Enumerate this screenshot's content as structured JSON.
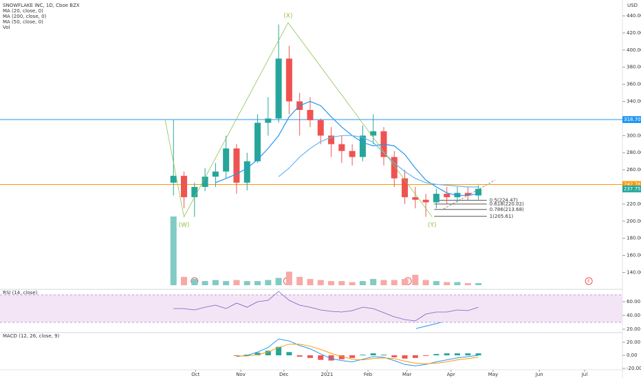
{
  "chart_data": [
    {
      "type": "candlestick",
      "title": "SNOWFLAKE INC, 1D, Cboe BZX",
      "currency": "USD",
      "xlim": [
        -16.5,
        42.7
      ],
      "xticks": [
        {
          "value": 2.1,
          "label": "Oct"
        },
        {
          "value": 6.4,
          "label": "Nov"
        },
        {
          "value": 10.5,
          "label": "Dec"
        },
        {
          "value": 14.6,
          "label": "2021"
        },
        {
          "value": 18.5,
          "label": "Feb"
        },
        {
          "value": 22.2,
          "label": "Mar"
        },
        {
          "value": 26.4,
          "label": "Apr"
        },
        {
          "value": 30.4,
          "label": "May"
        },
        {
          "value": 34.8,
          "label": "Jun"
        },
        {
          "value": 39.1,
          "label": "Jul"
        }
      ],
      "ylim": [
        121.1,
        458.5
      ],
      "yticks": [
        {
          "value": 140,
          "label": "140.00"
        },
        {
          "value": 160,
          "label": "160.00"
        },
        {
          "value": 180,
          "label": "180.00"
        },
        {
          "value": 200,
          "label": "200.00"
        },
        {
          "value": 220,
          "label": "220.00"
        },
        {
          "value": 240,
          "label": "240.00"
        },
        {
          "value": 260,
          "label": "260.00"
        },
        {
          "value": 280,
          "label": "280.00"
        },
        {
          "value": 300,
          "label": "300.00"
        },
        {
          "value": 320,
          "label": "320.00"
        },
        {
          "value": 340,
          "label": "340.00"
        },
        {
          "value": 360,
          "label": "360.00"
        },
        {
          "value": 380,
          "label": "380.00"
        },
        {
          "value": 400,
          "label": "400.00"
        },
        {
          "value": 420,
          "label": "420.00"
        },
        {
          "value": 440,
          "label": "440.00"
        }
      ],
      "ohlc": [
        [
          245,
          319,
          230,
          253
        ],
        [
          253,
          258,
          215,
          228
        ],
        [
          228,
          245,
          205,
          240
        ],
        [
          240,
          262,
          235,
          252
        ],
        [
          252,
          268,
          240,
          258
        ],
        [
          258,
          300,
          250,
          285
        ],
        [
          285,
          290,
          232,
          245
        ],
        [
          245,
          280,
          236,
          270
        ],
        [
          270,
          325,
          268,
          315
        ],
        [
          315,
          345,
          300,
          320
        ],
        [
          320,
          430,
          315,
          390
        ],
        [
          390,
          405,
          325,
          340
        ],
        [
          340,
          350,
          300,
          330
        ],
        [
          330,
          345,
          310,
          318
        ],
        [
          318,
          320,
          290,
          300
        ],
        [
          300,
          310,
          275,
          290
        ],
        [
          290,
          300,
          268,
          282
        ],
        [
          282,
          290,
          265,
          275
        ],
        [
          275,
          312,
          270,
          300
        ],
        [
          300,
          325,
          290,
          305
        ],
        [
          305,
          310,
          265,
          275
        ],
        [
          275,
          282,
          240,
          250
        ],
        [
          250,
          260,
          220,
          228
        ],
        [
          228,
          240,
          215,
          225
        ],
        [
          225,
          232,
          205,
          222
        ],
        [
          222,
          238,
          215,
          232
        ],
        [
          232,
          240,
          220,
          228
        ],
        [
          228,
          240,
          222,
          233
        ],
        [
          233,
          240,
          224,
          230
        ],
        [
          230,
          242,
          225,
          237.75
        ]
      ],
      "up_color": "#26a69a",
      "down_color": "#ef5350",
      "series": [
        {
          "name": "MA (20, close, 0)",
          "color": "#2196f3",
          "values": [
            null,
            null,
            null,
            null,
            245,
            250,
            255,
            262,
            272,
            285,
            300,
            322,
            335,
            340,
            335,
            322,
            310,
            300,
            292,
            288,
            290,
            288,
            278,
            262,
            248,
            240,
            233,
            230,
            230,
            232
          ]
        },
        {
          "name": "MA (200, close, 0)",
          "color": "#e91e63",
          "values": [
            null,
            null,
            null,
            null,
            null,
            null,
            null,
            null,
            null,
            null,
            null,
            null,
            null,
            null,
            null,
            null,
            null,
            null,
            null,
            null,
            null,
            null,
            null,
            null,
            null,
            null,
            null,
            null,
            null,
            null
          ]
        },
        {
          "name": "MA (50, close, 0)",
          "color": "#64b5f6",
          "values": [
            null,
            null,
            null,
            null,
            null,
            null,
            null,
            null,
            null,
            null,
            252,
            262,
            275,
            285,
            293,
            298,
            300,
            300,
            298,
            292,
            280,
            268,
            258,
            250,
            245,
            243,
            242,
            241,
            240,
            240
          ]
        }
      ],
      "levels": [
        {
          "value": 318.7,
          "label": "318.70",
          "color": "#2196f3",
          "line": true
        },
        {
          "value": 242.76,
          "label": "242.76",
          "color": "#ff9800",
          "line": true
        },
        {
          "value": 237.75,
          "label": "237.75",
          "color": "#26a69a",
          "line": false
        }
      ],
      "fib": [
        {
          "value": 224.47,
          "label": "0.5(224.47)"
        },
        {
          "value": 220.02,
          "label": "0.618(220.02)"
        },
        {
          "value": 213.68,
          "label": "0.786(213.68)"
        },
        {
          "value": 205.61,
          "label": "1(205.61)"
        }
      ],
      "waves": {
        "x": [
          -0.8,
          1,
          10.9,
          24.6
        ],
        "values": [
          319,
          205,
          432,
          205
        ],
        "labels": [
          null,
          "(W)",
          "(X)",
          "(Y)"
        ],
        "color": "#8bc34a"
      },
      "events": {
        "x": [
          2,
          10.8,
          22.3,
          39.5
        ],
        "label": "E"
      }
    },
    {
      "type": "volume",
      "title": "Vol",
      "values": [
        66,
        8,
        6,
        4,
        5,
        4,
        5,
        4,
        4,
        5,
        7,
        13,
        8,
        6,
        5,
        4,
        4,
        3,
        4,
        6,
        5,
        5,
        6,
        10,
        5,
        4,
        3,
        3,
        2,
        2
      ]
    },
    {
      "type": "line",
      "title": "RSI (14, close)",
      "color": "#7e57c2",
      "ylim": [
        17,
        75
      ],
      "band": [
        30,
        70
      ],
      "yticks": [
        {
          "value": 20,
          "label": "20.00"
        },
        {
          "value": 40,
          "label": "40.00"
        },
        {
          "value": 60,
          "label": "60.00"
        }
      ],
      "values": [
        50,
        50,
        48,
        52,
        55,
        50,
        58,
        52,
        60,
        62,
        75,
        62,
        55,
        52,
        48,
        46,
        45,
        47,
        52,
        50,
        44,
        38,
        34,
        32,
        42,
        45,
        45,
        48,
        47,
        52
      ]
    },
    {
      "type": "macd",
      "title": "MACD (12, 26, close, 9)",
      "ylim": [
        -24.2,
        32.6
      ],
      "yticks": [
        {
          "value": -20,
          "label": "-20.00"
        },
        {
          "value": 0,
          "label": "0.00"
        },
        {
          "value": 20,
          "label": "20.00"
        }
      ],
      "series": [
        {
          "name": "MACD",
          "color": "#2196f3",
          "values": [
            null,
            null,
            null,
            null,
            null,
            null,
            -2,
            0,
            5,
            12,
            25,
            22,
            15,
            10,
            2,
            -5,
            -8,
            -10,
            -6,
            -2,
            -3,
            -8,
            -14,
            -16,
            -14,
            -10,
            -7,
            -4,
            -2,
            0
          ]
        },
        {
          "name": "Signal",
          "color": "#ff9800",
          "values": [
            null,
            null,
            null,
            null,
            null,
            null,
            -1,
            -1,
            1,
            5,
            12,
            17,
            17,
            14,
            9,
            3,
            -2,
            -6,
            -7,
            -5,
            -4,
            -5,
            -9,
            -12,
            -13,
            -12,
            -10,
            -7,
            -5,
            -3
          ]
        }
      ],
      "histogram": [
        null,
        null,
        null,
        null,
        null,
        null,
        -1,
        1,
        4,
        7,
        13,
        5,
        -2,
        -4,
        -7,
        -8,
        -6,
        -4,
        1,
        3,
        1,
        -3,
        -5,
        -4,
        -1,
        2,
        3,
        3,
        3,
        3
      ]
    }
  ]
}
